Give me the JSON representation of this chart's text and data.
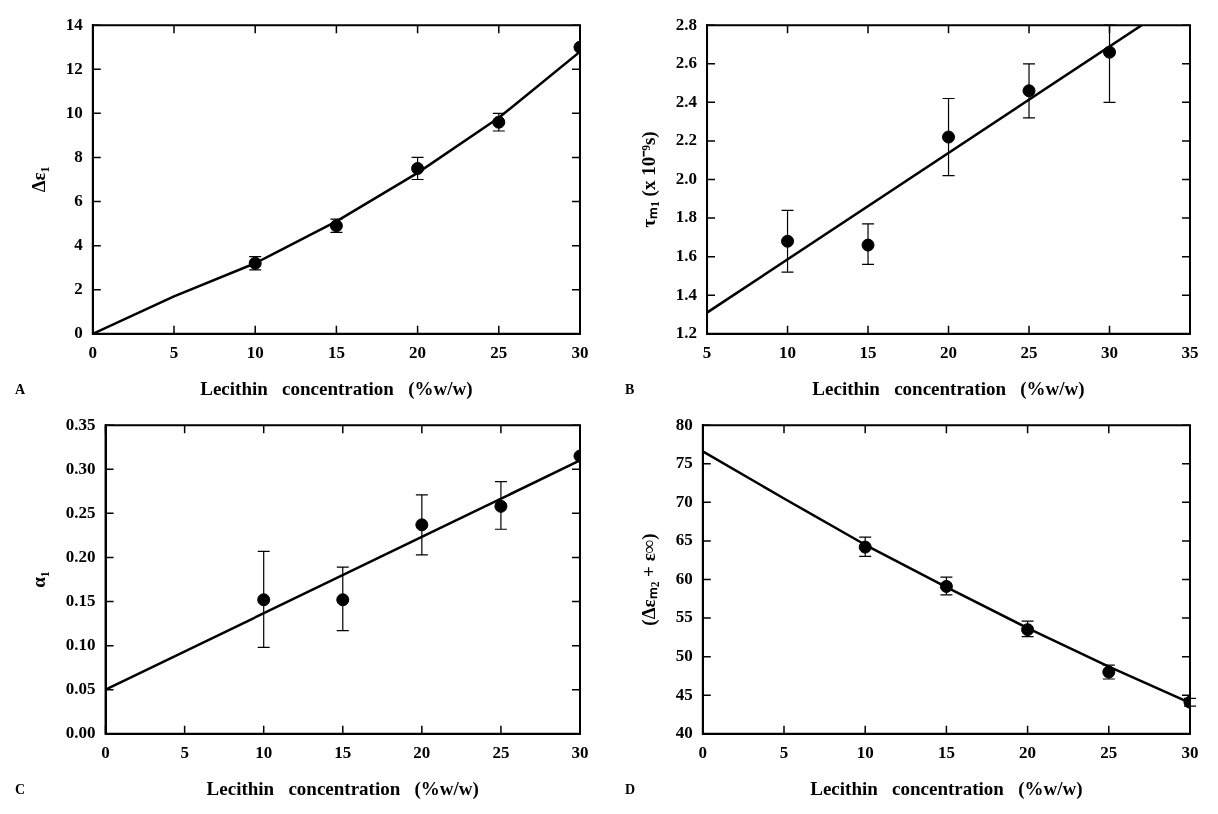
{
  "chart_data": [
    {
      "type": "scatter",
      "xlabel": "Lecithin   concentration   (%w/w)",
      "ylabel": "Δε₁",
      "xlim": [
        0,
        30
      ],
      "xticks": [
        0,
        5,
        10,
        15,
        20,
        25,
        30
      ],
      "ylim": [
        0,
        14
      ],
      "yticks": [
        0,
        2,
        4,
        6,
        8,
        10,
        12,
        14
      ],
      "grid": false,
      "legend": false,
      "annotations": [
        "A"
      ],
      "series": [
        {
          "type": "scatter",
          "marker": "circle",
          "color": "#000000",
          "x": [
            10,
            15,
            20,
            25,
            30
          ],
          "values": [
            3.2,
            4.9,
            7.5,
            9.6,
            13.0
          ],
          "errors": [
            0.3,
            0.3,
            0.5,
            0.4,
            null
          ]
        },
        {
          "type": "line",
          "color": "#000000",
          "x": [
            0,
            5,
            10,
            15,
            20,
            25,
            30
          ],
          "values": [
            0,
            1.7,
            3.2,
            5.1,
            7.3,
            9.8,
            12.8
          ]
        }
      ]
    },
    {
      "type": "scatter",
      "xlabel": "Lecithin   concentration   (%w/w)",
      "ylabel": "τₘ₁ (x 10⁻⁹s)",
      "xlim": [
        5,
        35
      ],
      "xticks": [
        5,
        10,
        15,
        20,
        25,
        30,
        35
      ],
      "ylim": [
        1.2,
        2.8
      ],
      "yticks": [
        1.2,
        1.4,
        1.6,
        1.8,
        {
          "value": 2,
          "label": "2.0"
        },
        2.2,
        2.4,
        2.6,
        2.8
      ],
      "grid": false,
      "legend": false,
      "annotations": [
        "B"
      ],
      "series": [
        {
          "type": "scatter",
          "marker": "circle",
          "color": "#000000",
          "x": [
            10,
            15,
            20,
            25,
            30
          ],
          "values": [
            1.68,
            1.66,
            2.22,
            2.46,
            2.66
          ],
          "errors": [
            [
              1.52,
              1.84
            ],
            [
              1.56,
              1.77
            ],
            [
              2.02,
              2.42
            ],
            [
              2.32,
              2.6
            ],
            [
              2.4,
              2.8
            ]
          ]
        },
        {
          "type": "line",
          "color": "#000000",
          "x": [
            5,
            32
          ],
          "values": [
            1.31,
            2.8
          ]
        }
      ]
    },
    {
      "type": "scatter",
      "xlabel": "Lecithin   concentration   (%w/w)",
      "ylabel": "α₁",
      "xlim": [
        0,
        30
      ],
      "xticks": [
        0,
        5,
        10,
        15,
        20,
        25,
        30
      ],
      "ylim": [
        0,
        0.35
      ],
      "yticks": [
        {
          "value": 0,
          "label": "0.00"
        },
        {
          "value": 0.05,
          "label": "0.05"
        },
        {
          "value": 0.1,
          "label": "0.10"
        },
        {
          "value": 0.15,
          "label": "0.15"
        },
        {
          "value": 0.2,
          "label": "0.20"
        },
        {
          "value": 0.25,
          "label": "0.25"
        },
        {
          "value": 0.3,
          "label": "0.30"
        },
        {
          "value": 0.35,
          "label": "0.35"
        }
      ],
      "grid": false,
      "legend": false,
      "annotations": [
        "C"
      ],
      "series": [
        {
          "type": "scatter",
          "marker": "circle",
          "color": "#000000",
          "x": [
            10,
            15,
            20,
            25,
            30
          ],
          "values": [
            0.152,
            0.152,
            0.237,
            0.258,
            0.315
          ],
          "errors": [
            [
              0.098,
              0.207
            ],
            [
              0.117,
              0.189
            ],
            [
              0.203,
              0.271
            ],
            [
              0.232,
              0.286
            ],
            null
          ]
        },
        {
          "type": "line",
          "color": "#000000",
          "x": [
            0,
            30
          ],
          "values": [
            0.05,
            0.31
          ]
        }
      ]
    },
    {
      "type": "scatter",
      "xlabel": "Lecithin   concentration   (%w/w)",
      "ylabel": "(Δεₘ₂ + ε∞)",
      "xlim": [
        0,
        30
      ],
      "xticks": [
        0,
        5,
        10,
        15,
        20,
        25,
        30
      ],
      "ylim": [
        40,
        80
      ],
      "yticks": [
        40,
        45,
        50,
        55,
        60,
        65,
        70,
        75,
        80
      ],
      "grid": false,
      "legend": false,
      "annotations": [
        "D"
      ],
      "series": [
        {
          "type": "scatter",
          "marker": "circle",
          "color": "#000000",
          "x": [
            10,
            15,
            20,
            25,
            30
          ],
          "values": [
            64.2,
            59.1,
            53.5,
            48.0,
            44.1
          ],
          "errors": [
            [
              63.0,
              65.5
            ],
            [
              58.0,
              60.3
            ],
            [
              52.6,
              54.6
            ],
            [
              47.1,
              48.9
            ],
            [
              43.6,
              44.6
            ]
          ]
        },
        {
          "type": "line",
          "color": "#000000",
          "x": [
            0,
            5,
            10,
            15,
            20,
            25,
            30
          ],
          "values": [
            76.6,
            70.5,
            64.5,
            59.0,
            53.7,
            48.7,
            44.0
          ]
        }
      ]
    }
  ]
}
